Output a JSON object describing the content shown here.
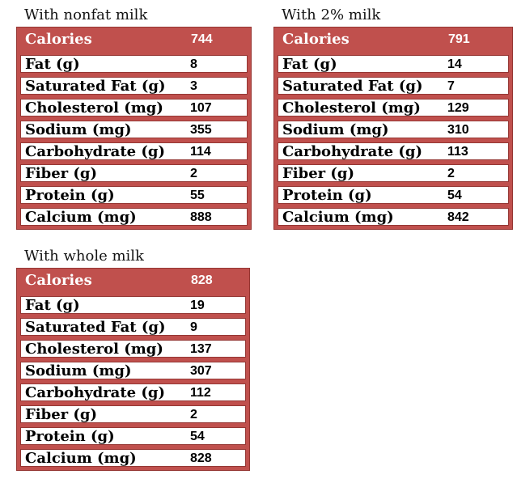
{
  "colors": {
    "table_fill_red": "#c0504d",
    "table_border_red": "#953734",
    "row_background": "#ffffff",
    "header_text": "#ffffff",
    "body_text": "#000000",
    "title_text": "#141414"
  },
  "chart_data": [
    {
      "type": "table",
      "title": "With nonfat milk",
      "rows": [
        [
          "Calories",
          744
        ],
        [
          "Fat (g)",
          8
        ],
        [
          "Saturated Fat (g)",
          3
        ],
        [
          "Cholesterol (mg)",
          107
        ],
        [
          "Sodium (mg)",
          355
        ],
        [
          "Carbohydrate (g)",
          114
        ],
        [
          "Fiber (g)",
          2
        ],
        [
          "Protein (g)",
          55
        ],
        [
          "Calcium (mg)",
          888
        ]
      ]
    },
    {
      "type": "table",
      "title": "With 2% milk",
      "rows": [
        [
          "Calories",
          791
        ],
        [
          "Fat (g)",
          14
        ],
        [
          "Saturated Fat (g)",
          7
        ],
        [
          "Cholesterol (mg)",
          129
        ],
        [
          "Sodium (mg)",
          310
        ],
        [
          "Carbohydrate (g)",
          113
        ],
        [
          "Fiber (g)",
          2
        ],
        [
          "Protein (g)",
          54
        ],
        [
          "Calcium (mg)",
          842
        ]
      ]
    },
    {
      "type": "table",
      "title": "With whole milk",
      "rows": [
        [
          "Calories",
          828
        ],
        [
          "Fat (g)",
          19
        ],
        [
          "Saturated Fat (g)",
          9
        ],
        [
          "Cholesterol (mg)",
          137
        ],
        [
          "Sodium (mg)",
          307
        ],
        [
          "Carbohydrate (g)",
          112
        ],
        [
          "Fiber (g)",
          2
        ],
        [
          "Protein (g)",
          54
        ],
        [
          "Calcium (mg)",
          828
        ]
      ]
    }
  ]
}
